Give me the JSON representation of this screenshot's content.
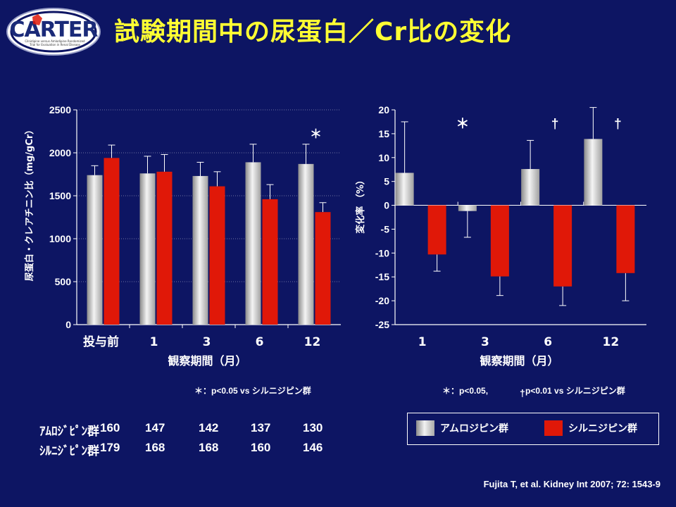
{
  "logo": {
    "text": "CARTER",
    "subtitle_lines": [
      "Cilnidipine versus Amlodipine Randomized",
      "Trial for Evaluation in Renal Disease"
    ]
  },
  "title": "試験期間中の尿蛋白／Cr比の変化",
  "colors": {
    "background": "#0d1563",
    "title": "#ffff33",
    "amlodipine": "#d4d4d4",
    "cilnidipine": "#e01808"
  },
  "chart_data": [
    {
      "type": "bar",
      "title": "",
      "xlabel": "観察期間（月）",
      "ylabel": "尿蛋白・クレアチニン比（mg/gCr）",
      "ylim": [
        0,
        2500
      ],
      "yticks": [
        0,
        500,
        1000,
        1500,
        2000,
        2500
      ],
      "categories": [
        "投与前",
        "1",
        "3",
        "6",
        "12"
      ],
      "series": [
        {
          "name": "アムロジピン群",
          "values": [
            1740,
            1760,
            1730,
            1890,
            1870
          ],
          "errors": [
            110,
            200,
            160,
            210,
            230
          ]
        },
        {
          "name": "シルニジピン群",
          "values": [
            1940,
            1780,
            1610,
            1460,
            1310
          ],
          "errors": [
            150,
            200,
            170,
            170,
            110
          ]
        }
      ],
      "annotations": [
        {
          "text": "＊",
          "category": "12"
        }
      ],
      "grid": true
    },
    {
      "type": "bar",
      "title": "",
      "xlabel": "観察期間（月）",
      "ylabel": "変化率 （%）",
      "ylim": [
        -25,
        20
      ],
      "yticks": [
        -25,
        -20,
        -15,
        -10,
        -5,
        0,
        5,
        10,
        15,
        20
      ],
      "categories": [
        "1",
        "3",
        "6",
        "12"
      ],
      "series": [
        {
          "name": "アムロジピン群",
          "values": [
            6.8,
            -1.2,
            7.6,
            13.9
          ],
          "errors": [
            10.7,
            5.5,
            6,
            6.6
          ]
        },
        {
          "name": "シルニジピン群",
          "values": [
            -10.3,
            -14.9,
            -17,
            -14.2
          ],
          "errors": [
            3.5,
            4,
            4,
            5.8
          ]
        }
      ],
      "annotations": [
        {
          "text": "＊",
          "category": "3"
        },
        {
          "text": "†",
          "category": "6"
        },
        {
          "text": "†",
          "category": "12"
        }
      ],
      "grid": false
    }
  ],
  "notes": {
    "left": "＊：p<0.05 vs シルニジピン群",
    "right_a": "＊：p<0.05,",
    "right_dagger": "†",
    "right_b": "p<0.01  vs シルニジピン群"
  },
  "table": {
    "rows": [
      {
        "label": "ｱﾑﾛｼﾞﾋﾟﾝ群",
        "values": [
          "160",
          "147",
          "142",
          "137",
          "130"
        ]
      },
      {
        "label": "ｼﾙﾆｼﾞﾋﾟﾝ群",
        "values": [
          "179",
          "168",
          "168",
          "160",
          "146"
        ]
      }
    ]
  },
  "legend": {
    "items": [
      "アムロジピン群",
      "シルニジピン群"
    ]
  },
  "citation": "Fujita T, et al. Kidney Int 2007; 72: 1543-9"
}
